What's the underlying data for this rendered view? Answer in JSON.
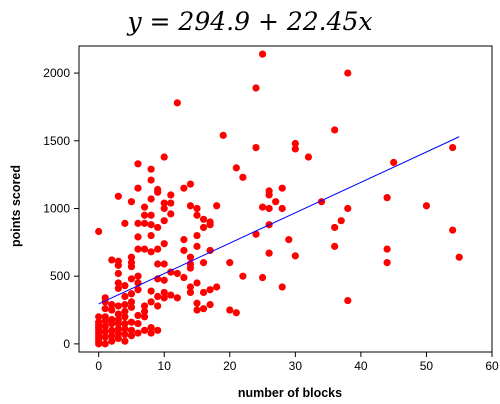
{
  "chart_data": {
    "type": "scatter",
    "title": "y = 294.9 + 22.45x",
    "xlabel": "number of blocks",
    "ylabel": "points scored",
    "xlim": [
      -3,
      60
    ],
    "ylim": [
      -60,
      2200
    ],
    "xticks": [
      0,
      10,
      20,
      30,
      40,
      50,
      60
    ],
    "yticks": [
      0,
      500,
      1000,
      1500,
      2000
    ],
    "xtick_labels": [
      "0",
      "10",
      "20",
      "30",
      "40",
      "50",
      "60"
    ],
    "ytick_labels": [
      "0",
      "500",
      "1000",
      "1500",
      "2000"
    ],
    "grid": false,
    "point_color": "#ff0000",
    "fit_line_color": "#0000ff",
    "fit_line": {
      "intercept": 294.9,
      "slope": 22.45,
      "x_range": [
        0,
        55
      ]
    },
    "points": [
      [
        0,
        0
      ],
      [
        0,
        20
      ],
      [
        0,
        40
      ],
      [
        0,
        60
      ],
      [
        0,
        80
      ],
      [
        0,
        100
      ],
      [
        0,
        120
      ],
      [
        0,
        140
      ],
      [
        0,
        160
      ],
      [
        0,
        200
      ],
      [
        0,
        830
      ],
      [
        1,
        0
      ],
      [
        1,
        50
      ],
      [
        1,
        90
      ],
      [
        1,
        130
      ],
      [
        1,
        170
      ],
      [
        1,
        200
      ],
      [
        1,
        260
      ],
      [
        1,
        310
      ],
      [
        1,
        340
      ],
      [
        2,
        20
      ],
      [
        2,
        60
      ],
      [
        2,
        100
      ],
      [
        2,
        150
      ],
      [
        2,
        180
      ],
      [
        2,
        250
      ],
      [
        2,
        290
      ],
      [
        2,
        620
      ],
      [
        3,
        40
      ],
      [
        3,
        80
      ],
      [
        3,
        110
      ],
      [
        3,
        150
      ],
      [
        3,
        180
      ],
      [
        3,
        220
      ],
      [
        3,
        280
      ],
      [
        3,
        410
      ],
      [
        3,
        450
      ],
      [
        3,
        520
      ],
      [
        3,
        580
      ],
      [
        3,
        610
      ],
      [
        3,
        1090
      ],
      [
        4,
        20
      ],
      [
        4,
        70
      ],
      [
        4,
        110
      ],
      [
        4,
        150
      ],
      [
        4,
        200
      ],
      [
        4,
        240
      ],
      [
        4,
        290
      ],
      [
        4,
        350
      ],
      [
        4,
        430
      ],
      [
        4,
        890
      ],
      [
        5,
        60
      ],
      [
        5,
        100
      ],
      [
        5,
        160
      ],
      [
        5,
        270
      ],
      [
        5,
        310
      ],
      [
        5,
        370
      ],
      [
        5,
        480
      ],
      [
        5,
        570
      ],
      [
        5,
        600
      ],
      [
        5,
        640
      ],
      [
        5,
        1050
      ],
      [
        6,
        80
      ],
      [
        6,
        150
      ],
      [
        6,
        210
      ],
      [
        6,
        400
      ],
      [
        6,
        450
      ],
      [
        6,
        500
      ],
      [
        6,
        700
      ],
      [
        6,
        790
      ],
      [
        6,
        890
      ],
      [
        6,
        1150
      ],
      [
        6,
        1330
      ],
      [
        7,
        100
      ],
      [
        7,
        200
      ],
      [
        7,
        240
      ],
      [
        7,
        280
      ],
      [
        7,
        700
      ],
      [
        7,
        890
      ],
      [
        7,
        950
      ],
      [
        7,
        1010
      ],
      [
        8,
        80
      ],
      [
        8,
        120
      ],
      [
        8,
        310
      ],
      [
        8,
        390
      ],
      [
        8,
        680
      ],
      [
        8,
        800
      ],
      [
        8,
        880
      ],
      [
        8,
        950
      ],
      [
        8,
        1070
      ],
      [
        8,
        1210
      ],
      [
        8,
        1290
      ],
      [
        9,
        100
      ],
      [
        9,
        280
      ],
      [
        9,
        350
      ],
      [
        9,
        480
      ],
      [
        9,
        590
      ],
      [
        9,
        700
      ],
      [
        9,
        860
      ],
      [
        9,
        1120
      ],
      [
        9,
        1140
      ],
      [
        10,
        340
      ],
      [
        10,
        380
      ],
      [
        10,
        470
      ],
      [
        10,
        590
      ],
      [
        10,
        740
      ],
      [
        10,
        910
      ],
      [
        10,
        1000
      ],
      [
        10,
        1040
      ],
      [
        10,
        1380
      ],
      [
        11,
        360
      ],
      [
        11,
        530
      ],
      [
        11,
        960
      ],
      [
        11,
        1100
      ],
      [
        11,
        1040
      ],
      [
        12,
        340
      ],
      [
        12,
        520
      ],
      [
        12,
        1780
      ],
      [
        13,
        490
      ],
      [
        13,
        690
      ],
      [
        13,
        1150
      ],
      [
        13,
        770
      ],
      [
        14,
        380
      ],
      [
        14,
        420
      ],
      [
        14,
        560
      ],
      [
        14,
        590
      ],
      [
        14,
        640
      ],
      [
        14,
        1020
      ],
      [
        14,
        1180
      ],
      [
        15,
        250
      ],
      [
        15,
        300
      ],
      [
        15,
        450
      ],
      [
        15,
        720
      ],
      [
        15,
        800
      ],
      [
        15,
        950
      ],
      [
        15,
        1000
      ],
      [
        16,
        260
      ],
      [
        16,
        380
      ],
      [
        16,
        600
      ],
      [
        16,
        860
      ],
      [
        16,
        920
      ],
      [
        17,
        290
      ],
      [
        17,
        400
      ],
      [
        17,
        690
      ],
      [
        17,
        880
      ],
      [
        17,
        900
      ],
      [
        18,
        420
      ],
      [
        18,
        1020
      ],
      [
        19,
        1540
      ],
      [
        20,
        250
      ],
      [
        20,
        600
      ],
      [
        21,
        230
      ],
      [
        21,
        1300
      ],
      [
        22,
        500
      ],
      [
        22,
        1230
      ],
      [
        24,
        810
      ],
      [
        24,
        1450
      ],
      [
        24,
        1890
      ],
      [
        25,
        490
      ],
      [
        25,
        2140
      ],
      [
        25,
        1010
      ],
      [
        26,
        670
      ],
      [
        26,
        880
      ],
      [
        26,
        1000
      ],
      [
        26,
        1100
      ],
      [
        26,
        1130
      ],
      [
        27,
        1050
      ],
      [
        28,
        420
      ],
      [
        28,
        1000
      ],
      [
        28,
        1150
      ],
      [
        29,
        770
      ],
      [
        30,
        1440
      ],
      [
        30,
        1480
      ],
      [
        30,
        650
      ],
      [
        32,
        1380
      ],
      [
        34,
        1050
      ],
      [
        36,
        860
      ],
      [
        36,
        1580
      ],
      [
        36,
        720
      ],
      [
        37,
        910
      ],
      [
        38,
        320
      ],
      [
        38,
        1000
      ],
      [
        38,
        2000
      ],
      [
        44,
        600
      ],
      [
        44,
        700
      ],
      [
        44,
        1080
      ],
      [
        45,
        1340
      ],
      [
        50,
        1020
      ],
      [
        54,
        840
      ],
      [
        54,
        1450
      ],
      [
        55,
        640
      ]
    ]
  }
}
